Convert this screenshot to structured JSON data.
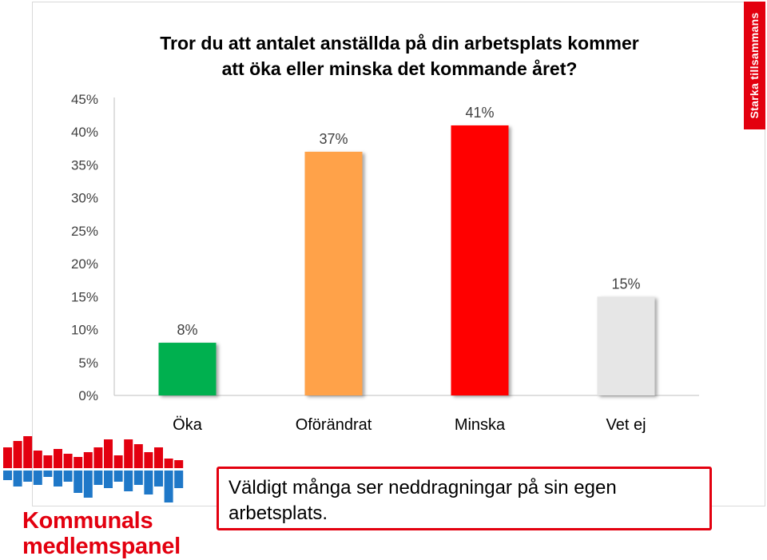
{
  "brand_tab": "Starka tillsammans",
  "chart_data": {
    "type": "bar",
    "title_lines": [
      "Tror du att antalet anställda på din arbetsplats kommer",
      "att öka eller minska det kommande året?"
    ],
    "categories": [
      "Öka",
      "Oförändrat",
      "Minska",
      "Vet ej"
    ],
    "values": [
      8,
      37,
      41,
      15
    ],
    "data_labels": [
      "8%",
      "37%",
      "41%",
      "15%"
    ],
    "bar_colors": [
      "#00b050",
      "#ffa24a",
      "#ff0000",
      "#e6e6e6"
    ],
    "y_ticks": [
      "0%",
      "5%",
      "10%",
      "15%",
      "20%",
      "25%",
      "30%",
      "35%",
      "40%",
      "45%"
    ],
    "ylim": [
      0,
      45
    ],
    "grid": false,
    "legend": "none"
  },
  "callout_text": "Väldigt många ser neddragningar på sin egen arbetsplats.",
  "logo": {
    "line1": "Kommunals",
    "line2": "medlemspanel",
    "top_color": "#e3000f",
    "bottom_color": "#1f78c8"
  }
}
